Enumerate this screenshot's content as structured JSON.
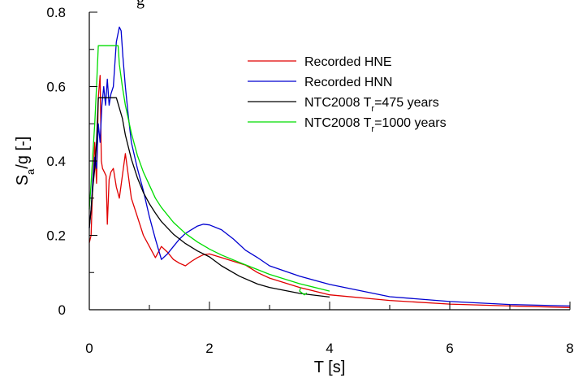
{
  "clipped_top_text": "g",
  "chart_data": {
    "type": "line",
    "title": "",
    "xlabel": "T [s]",
    "ylabel": {
      "main": "S",
      "sub": "a",
      "rest": "/g [-]"
    },
    "xlim": [
      0,
      8
    ],
    "ylim": [
      0,
      0.8
    ],
    "x_ticks": [
      0,
      2,
      4,
      6,
      8
    ],
    "x_minor_ticks": [
      1,
      3,
      5,
      7
    ],
    "y_ticks": [
      0,
      0.2,
      0.4,
      0.6,
      0.8
    ],
    "y_minor_ticks": [
      0.1,
      0.3,
      0.5,
      0.7
    ],
    "grid": false,
    "legend_position": "top-right",
    "series": [
      {
        "name": "Recorded HNE",
        "legend": {
          "main": "Recorded HNE",
          "sub": "",
          "rest": ""
        },
        "color": "#e00000",
        "x": [
          0.0,
          0.03,
          0.06,
          0.09,
          0.12,
          0.15,
          0.18,
          0.2,
          0.22,
          0.25,
          0.28,
          0.3,
          0.33,
          0.36,
          0.4,
          0.45,
          0.5,
          0.55,
          0.6,
          0.65,
          0.7,
          0.8,
          0.9,
          1.0,
          1.1,
          1.2,
          1.3,
          1.4,
          1.5,
          1.6,
          1.7,
          1.8,
          1.9,
          2.0,
          2.2,
          2.4,
          2.6,
          2.8,
          3.0,
          3.5,
          4.0,
          5.0,
          6.0,
          7.0,
          8.0
        ],
        "y": [
          0.18,
          0.2,
          0.35,
          0.45,
          0.34,
          0.57,
          0.63,
          0.4,
          0.38,
          0.37,
          0.36,
          0.23,
          0.35,
          0.37,
          0.38,
          0.33,
          0.3,
          0.36,
          0.42,
          0.36,
          0.3,
          0.25,
          0.2,
          0.17,
          0.14,
          0.17,
          0.155,
          0.135,
          0.125,
          0.118,
          0.13,
          0.14,
          0.148,
          0.15,
          0.14,
          0.13,
          0.12,
          0.1,
          0.085,
          0.06,
          0.04,
          0.025,
          0.015,
          0.01,
          0.006
        ]
      },
      {
        "name": "Recorded HNN",
        "legend": {
          "main": "Recorded HNN",
          "sub": "",
          "rest": ""
        },
        "color": "#0000d0",
        "x": [
          0.0,
          0.03,
          0.06,
          0.09,
          0.12,
          0.15,
          0.18,
          0.21,
          0.24,
          0.27,
          0.3,
          0.33,
          0.36,
          0.4,
          0.45,
          0.5,
          0.53,
          0.56,
          0.6,
          0.65,
          0.7,
          0.8,
          0.9,
          1.0,
          1.1,
          1.2,
          1.3,
          1.4,
          1.5,
          1.6,
          1.7,
          1.8,
          1.9,
          2.0,
          2.2,
          2.4,
          2.6,
          2.8,
          3.0,
          3.5,
          4.0,
          5.0,
          6.0,
          7.0,
          8.0
        ],
        "y": [
          0.22,
          0.27,
          0.35,
          0.41,
          0.38,
          0.5,
          0.45,
          0.55,
          0.6,
          0.55,
          0.62,
          0.55,
          0.58,
          0.6,
          0.72,
          0.76,
          0.75,
          0.68,
          0.6,
          0.52,
          0.45,
          0.38,
          0.32,
          0.25,
          0.19,
          0.135,
          0.15,
          0.17,
          0.19,
          0.205,
          0.215,
          0.225,
          0.23,
          0.228,
          0.215,
          0.19,
          0.16,
          0.14,
          0.118,
          0.09,
          0.068,
          0.035,
          0.022,
          0.014,
          0.01
        ]
      },
      {
        "name": "NTC2008 Tr=475 years",
        "legend": {
          "main": "NTC2008 T",
          "sub": "r",
          "rest": "=475 years"
        },
        "color": "#000000",
        "x": [
          0.0,
          0.03,
          0.06,
          0.09,
          0.12,
          0.15,
          0.45,
          0.55,
          0.6,
          0.7,
          0.8,
          0.9,
          1.0,
          1.1,
          1.2,
          1.4,
          1.6,
          1.8,
          2.0,
          2.2,
          2.5,
          2.8,
          3.0,
          3.5,
          4.0
        ],
        "y": [
          0.22,
          0.27,
          0.33,
          0.38,
          0.45,
          0.57,
          0.57,
          0.515,
          0.47,
          0.405,
          0.355,
          0.315,
          0.285,
          0.26,
          0.237,
          0.203,
          0.178,
          0.158,
          0.142,
          0.118,
          0.09,
          0.069,
          0.06,
          0.044,
          0.034
        ]
      },
      {
        "name": "NTC2008 Tr=1000 years",
        "legend": {
          "main": "NTC2008 T",
          "sub": "r",
          "rest": "=1000 years"
        },
        "color": "#00dd00",
        "x": [
          0.0,
          0.03,
          0.06,
          0.09,
          0.12,
          0.15,
          0.48,
          0.5,
          0.55,
          0.6,
          0.7,
          0.8,
          0.9,
          1.0,
          1.1,
          1.2,
          1.4,
          1.6,
          1.8,
          2.0,
          2.2,
          2.5,
          2.8,
          3.0,
          3.5,
          4.0
        ],
        "y": [
          0.27,
          0.34,
          0.42,
          0.5,
          0.6,
          0.71,
          0.71,
          0.66,
          0.6,
          0.55,
          0.475,
          0.415,
          0.37,
          0.335,
          0.3,
          0.275,
          0.235,
          0.205,
          0.182,
          0.163,
          0.147,
          0.127,
          0.108,
          0.095,
          0.07,
          0.05
        ]
      },
      {
        "name": "",
        "legend": null,
        "color": "#00dd00",
        "x": [
          3.52,
          3.5,
          3.58,
          3.62
        ],
        "y": [
          0.06,
          0.05,
          0.04,
          0.045
        ]
      }
    ]
  }
}
